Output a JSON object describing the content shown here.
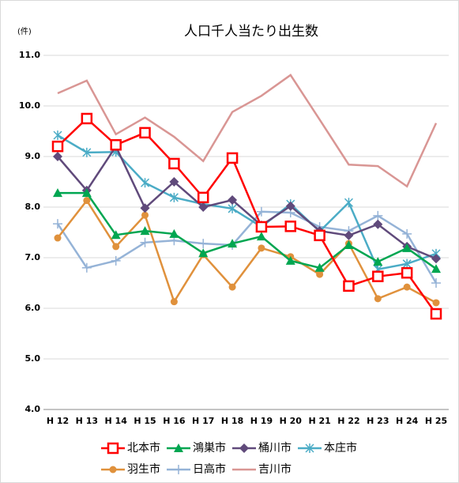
{
  "chart_data": {
    "type": "line",
    "title": "人口千人当たり出生数",
    "y_unit": "(件)",
    "categories": [
      "H 12",
      "H 13",
      "H 14",
      "H 15",
      "H 16",
      "H 17",
      "H 18",
      "H 19",
      "H 20",
      "H 21",
      "H 22",
      "H 23",
      "H 24",
      "H 25"
    ],
    "ylim": [
      4,
      11
    ],
    "yticks": [
      {
        "value": 4,
        "label": "4.0"
      },
      {
        "value": 5,
        "label": "5.0"
      },
      {
        "value": 6,
        "label": "6.0"
      },
      {
        "value": 7,
        "label": "7.0"
      },
      {
        "value": 8,
        "label": "8.0"
      },
      {
        "value": 9,
        "label": "9.0"
      },
      {
        "value": 10,
        "label": "10.0"
      },
      {
        "value": 11,
        "label": "11.0"
      }
    ],
    "grid": true,
    "legend": "bottom",
    "series": [
      {
        "name": "北本市",
        "color": "#ff0000",
        "marker": "square",
        "values": [
          9.2,
          9.75,
          9.23,
          9.47,
          8.86,
          8.19,
          8.97,
          7.61,
          7.62,
          7.44,
          6.44,
          6.63,
          6.7,
          5.89
        ]
      },
      {
        "name": "鴻巣市",
        "color": "#00a651",
        "marker": "triangle",
        "values": [
          8.28,
          8.28,
          7.45,
          7.53,
          7.47,
          7.09,
          7.28,
          7.42,
          6.94,
          6.8,
          7.25,
          6.92,
          7.19,
          6.78
        ]
      },
      {
        "name": "桶川市",
        "color": "#604a7b",
        "marker": "diamond",
        "values": [
          9.0,
          8.33,
          9.2,
          7.98,
          8.5,
          8.0,
          8.14,
          7.64,
          8.02,
          7.53,
          7.44,
          7.66,
          7.22,
          6.98
        ]
      },
      {
        "name": "本庄市",
        "color": "#4bacc6",
        "marker": "star",
        "values": [
          9.42,
          9.08,
          9.09,
          8.48,
          8.19,
          8.06,
          7.97,
          7.61,
          8.06,
          7.52,
          8.09,
          6.77,
          6.88,
          7.08
        ]
      },
      {
        "name": "羽生市",
        "color": "#e0913c",
        "marker": "circle",
        "values": [
          7.39,
          8.13,
          7.22,
          7.84,
          6.13,
          7.06,
          6.42,
          7.19,
          7.02,
          6.67,
          7.28,
          6.19,
          6.42,
          6.11
        ]
      },
      {
        "name": "日高市",
        "color": "#95b3d7",
        "marker": "plus",
        "values": [
          7.67,
          6.8,
          6.94,
          7.3,
          7.34,
          7.28,
          7.25,
          7.91,
          7.89,
          7.61,
          7.53,
          7.83,
          7.47,
          6.5
        ]
      },
      {
        "name": "吉川市",
        "color": "#d99694",
        "marker": "none",
        "values": [
          10.25,
          10.5,
          9.44,
          9.77,
          9.39,
          8.91,
          9.88,
          10.2,
          10.61,
          9.73,
          8.84,
          8.81,
          8.41,
          9.66
        ]
      }
    ]
  }
}
